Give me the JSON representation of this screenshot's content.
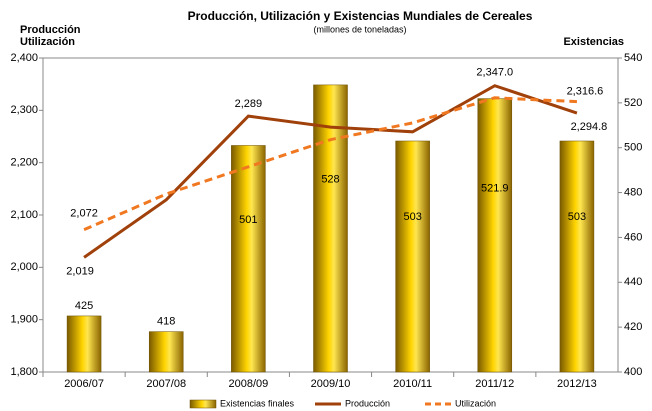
{
  "chart_data": {
    "type": "bar",
    "title": "Producción, Utilización y Existencias Mundiales de Cereales",
    "subtitle": "(millones de toneladas)",
    "y_axis_label": [
      "Producción",
      "Utilización"
    ],
    "y2_axis_label": "Existencias",
    "categories": [
      "2006/07",
      "2007/08",
      "2008/09",
      "2009/10",
      "2010/11",
      "2011/12",
      "2012/13"
    ],
    "series": [
      {
        "name": "Existencias finales",
        "type": "bar",
        "axis": "y2",
        "color": "#e0a800",
        "values": [
          425,
          418,
          501,
          528,
          503,
          521.9,
          503
        ]
      },
      {
        "name": "Producción",
        "type": "line",
        "color": "#a0400a",
        "values": [
          2019,
          2129,
          2289,
          2268,
          2259,
          2347.0,
          2294.8
        ],
        "value_labels": [
          "2,019",
          null,
          "2,289",
          null,
          null,
          "2,347.0",
          "2,294.8"
        ]
      },
      {
        "name": "Utilización",
        "type": "line",
        "dashed": true,
        "color": "#f07820",
        "values": [
          2072,
          2140,
          2192,
          2244,
          2276,
          2324,
          2316.6
        ],
        "value_labels": [
          "2,072",
          null,
          null,
          null,
          null,
          null,
          "2,316.6"
        ]
      }
    ],
    "ylim": [
      1800,
      2400
    ],
    "yticks": [
      {
        "value": 1800,
        "label": "1,800"
      },
      {
        "value": 1900,
        "label": "1,900"
      },
      {
        "value": 2000,
        "label": "2,000"
      },
      {
        "value": 2100,
        "label": "2,100"
      },
      {
        "value": 2200,
        "label": "2,200"
      },
      {
        "value": 2300,
        "label": "2,300"
      },
      {
        "value": 2400,
        "label": "2,400"
      }
    ],
    "y2lim": [
      400,
      540
    ],
    "y2ticks": [
      400,
      420,
      440,
      460,
      480,
      500,
      520,
      540
    ],
    "legend": "bottom"
  }
}
